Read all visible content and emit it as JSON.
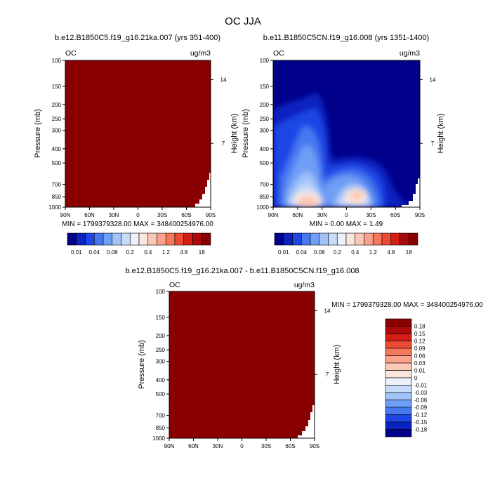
{
  "title": "OC JJA",
  "panels": [
    {
      "title": "b.e12.B1850C5.f19_g16.21ka.007 (yrs 351-400)",
      "left_label": "OC",
      "right_label": "ug/m3",
      "ylabel": "Pressure (mb)",
      "y2label": "Height (km)",
      "y_ticks": [
        "100",
        "150",
        "200",
        "250",
        "300",
        "400",
        "500",
        "700",
        "850",
        "1000"
      ],
      "y2_ticks": [
        "14",
        "7"
      ],
      "x_ticks": [
        "90N",
        "60N",
        "30N",
        "0",
        "30S",
        "60S",
        "90S"
      ],
      "stats": "MIN = 1799379328.00  MAX = 348400254976.00"
    },
    {
      "title": "b.e11.B1850C5CN.f19_g16.008 (yrs 1351-1400)",
      "left_label": "OC",
      "right_label": "ug/m3",
      "ylabel": "Pressure (mb)",
      "y2label": "Height (km)",
      "y_ticks": [
        "100",
        "150",
        "200",
        "250",
        "300",
        "400",
        "500",
        "700",
        "850",
        "1000"
      ],
      "y2_ticks": [
        "14",
        "7"
      ],
      "x_ticks": [
        "90N",
        "60N",
        "30N",
        "0",
        "30S",
        "60S",
        "90S"
      ],
      "stats": "MIN =  0.00  MAX =  1.49"
    },
    {
      "title": "b.e12.B1850C5.f19_g16.21ka.007 - b.e11.B1850C5CN.f19_g16.008",
      "left_label": "OC",
      "right_label": "ug/m3",
      "ylabel": "Pressure (mb)",
      "y2label": "Height (km)",
      "y_ticks": [
        "100",
        "150",
        "200",
        "250",
        "300",
        "400",
        "500",
        "700",
        "850",
        "1000"
      ],
      "y2_ticks": [
        "14",
        "7"
      ],
      "x_ticks": [
        "90N",
        "60N",
        "30N",
        "0",
        "30S",
        "60S",
        "90S"
      ],
      "stats": "MIN = 1799379328.00  MAX = 348400254976.00"
    }
  ],
  "colorbar_top": {
    "labels": [
      "0.01",
      "0.04",
      "0.08",
      "0.2",
      "0.4",
      "1.2",
      "4.8",
      "18"
    ],
    "colors": [
      "#00008a",
      "#0a23c0",
      "#1e46e6",
      "#4678f0",
      "#6e9ef5",
      "#a0c3fa",
      "#c8dcfa",
      "#ebf0fa",
      "#fae6dc",
      "#fac8b4",
      "#faa08c",
      "#f5785a",
      "#eb4b32",
      "#d21e14",
      "#aa0a0a",
      "#8a0000"
    ]
  },
  "colorbar_diff": {
    "labels": [
      "0.18",
      "0.15",
      "0.12",
      "0.09",
      "0.06",
      "0.03",
      "0.01",
      "0",
      "-0.01",
      "-0.03",
      "-0.06",
      "-0.09",
      "-0.12",
      "-0.15",
      "-0.18"
    ],
    "colors": [
      "#8a0000",
      "#aa0a0a",
      "#d21e14",
      "#eb4b32",
      "#f5785a",
      "#faa08c",
      "#fac8b4",
      "#fae6dc",
      "#ebf0fa",
      "#c8dcfa",
      "#a0c3fa",
      "#6e9ef5",
      "#4678f0",
      "#1e46e6",
      "#0a23c0",
      "#00008a"
    ]
  },
  "chart_data": [
    {
      "type": "heatmap",
      "title": "b.e12.B1850C5.f19_g16.21ka.007 (yrs 351-400)",
      "xlabel": "",
      "ylabel": "Pressure (mb)",
      "x": [
        "90N",
        "60N",
        "30N",
        "0",
        "30S",
        "60S",
        "90S"
      ],
      "y": [
        100,
        150,
        200,
        250,
        300,
        400,
        500,
        700,
        850,
        1000
      ],
      "y_scale": "log",
      "ylim": [
        1000,
        100
      ],
      "units": "ug/m3",
      "min": 1799379328.0,
      "max": 348400254976.0,
      "field": "uniform maximum (dark red) everywhere except topography masked near 90S below ~600 mb"
    },
    {
      "type": "heatmap",
      "title": "b.e11.B1850C5CN.f19_g16.008 (yrs 1351-1400)",
      "xlabel": "",
      "ylabel": "Pressure (mb)",
      "x": [
        "90N",
        "60N",
        "30N",
        "0",
        "30S",
        "60S",
        "90S"
      ],
      "y": [
        100,
        150,
        200,
        250,
        300,
        400,
        500,
        700,
        850,
        1000
      ],
      "y_scale": "log",
      "ylim": [
        1000,
        100
      ],
      "units": "ug/m3",
      "min": 0.0,
      "max": 1.49,
      "contour_levels": [
        0.01,
        0.04,
        0.08,
        0.2,
        0.4,
        1.2,
        4.8,
        18
      ],
      "maxima": [
        {
          "lat": "40N",
          "pressure_mb": 880,
          "value": 1.49
        },
        {
          "lat": "10S",
          "pressure_mb": 880,
          "value": 1.2
        }
      ]
    },
    {
      "type": "heatmap",
      "title": "b.e12.B1850C5.f19_g16.21ka.007 - b.e11.B1850C5CN.f19_g16.008",
      "xlabel": "",
      "ylabel": "Pressure (mb)",
      "x": [
        "90N",
        "60N",
        "30N",
        "0",
        "30S",
        "60S",
        "90S"
      ],
      "y": [
        100,
        150,
        200,
        250,
        300,
        400,
        500,
        700,
        850,
        1000
      ],
      "y_scale": "log",
      "ylim": [
        1000,
        100
      ],
      "units": "ug/m3",
      "min": 1799379328.0,
      "max": 348400254976.0,
      "contour_levels": [
        -0.18,
        -0.15,
        -0.12,
        -0.09,
        -0.06,
        -0.03,
        -0.01,
        0,
        0.01,
        0.03,
        0.06,
        0.09,
        0.12,
        0.15,
        0.18
      ],
      "field": "uniform above maximum (dark red) everywhere except topography masked near 90S below ~600 mb"
    }
  ]
}
